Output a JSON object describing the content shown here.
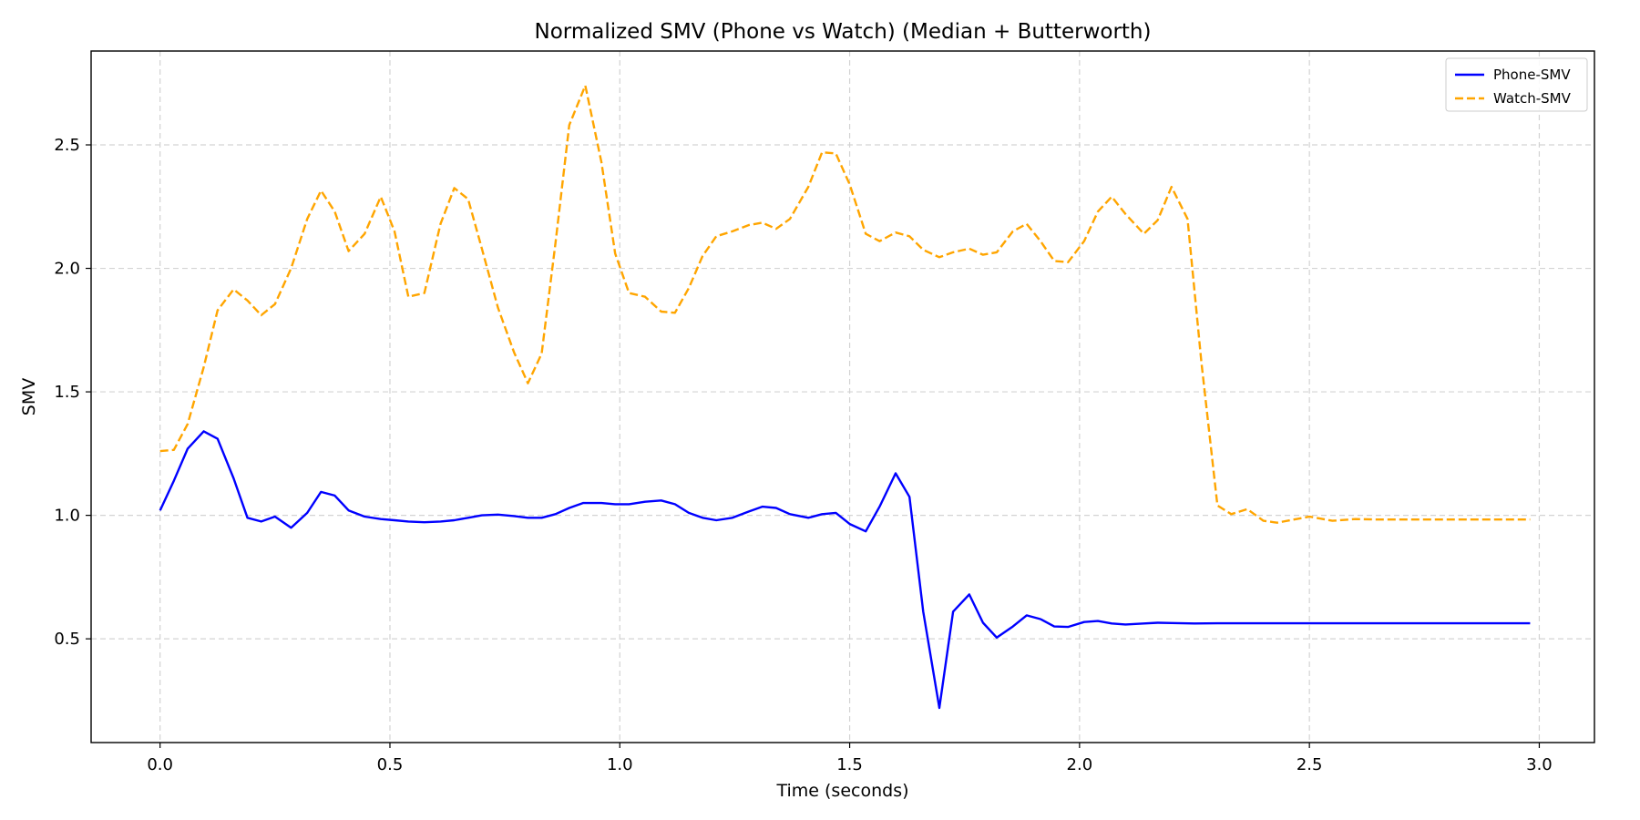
{
  "chart_data": {
    "type": "line",
    "title": "Normalized SMV (Phone vs Watch) (Median + Butterworth)",
    "xlabel": "Time (seconds)",
    "ylabel": "SMV",
    "xlim": [
      -0.15,
      3.12
    ],
    "ylim": [
      0.08,
      2.88
    ],
    "xticks": [
      0.0,
      0.5,
      1.0,
      1.5,
      2.0,
      2.5,
      3.0
    ],
    "xtick_labels": [
      "0.0",
      "0.5",
      "1.0",
      "1.5",
      "2.0",
      "2.5",
      "3.0"
    ],
    "yticks": [
      0.5,
      1.0,
      1.5,
      2.0,
      2.5
    ],
    "ytick_labels": [
      "0.5",
      "1.0",
      "1.5",
      "2.0",
      "2.5"
    ],
    "grid": true,
    "legend": "top-right",
    "series": [
      {
        "name": "Phone-SMV",
        "color": "#0000ff",
        "style": "solid",
        "x": [
          0.0,
          0.03,
          0.06,
          0.095,
          0.125,
          0.16,
          0.19,
          0.22,
          0.25,
          0.285,
          0.32,
          0.35,
          0.38,
          0.41,
          0.445,
          0.48,
          0.51,
          0.54,
          0.575,
          0.61,
          0.64,
          0.67,
          0.7,
          0.735,
          0.77,
          0.8,
          0.83,
          0.86,
          0.89,
          0.92,
          0.96,
          0.99,
          1.02,
          1.055,
          1.09,
          1.12,
          1.15,
          1.18,
          1.21,
          1.245,
          1.28,
          1.31,
          1.34,
          1.37,
          1.41,
          1.44,
          1.47,
          1.5,
          1.535,
          1.565,
          1.6,
          1.63,
          1.66,
          1.695,
          1.725,
          1.76,
          1.79,
          1.82,
          1.855,
          1.885,
          1.915,
          1.945,
          1.975,
          2.01,
          2.04,
          2.07,
          2.1,
          2.14,
          2.17,
          2.2,
          2.25,
          2.3,
          2.4,
          2.5,
          2.6,
          2.7,
          2.8,
          2.9,
          2.98
        ],
        "y": [
          1.02,
          1.14,
          1.27,
          1.34,
          1.31,
          1.15,
          0.99,
          0.975,
          0.995,
          0.95,
          1.01,
          1.095,
          1.08,
          1.02,
          0.995,
          0.985,
          0.98,
          0.975,
          0.972,
          0.975,
          0.98,
          0.99,
          1.0,
          1.003,
          0.997,
          0.99,
          0.99,
          1.005,
          1.03,
          1.05,
          1.05,
          1.045,
          1.045,
          1.055,
          1.06,
          1.045,
          1.01,
          0.99,
          0.98,
          0.99,
          1.015,
          1.035,
          1.03,
          1.005,
          0.99,
          1.005,
          1.01,
          0.965,
          0.935,
          1.035,
          1.17,
          1.075,
          0.61,
          0.22,
          0.61,
          0.68,
          0.565,
          0.505,
          0.55,
          0.595,
          0.58,
          0.55,
          0.548,
          0.568,
          0.572,
          0.562,
          0.558,
          0.562,
          0.565,
          0.564,
          0.562,
          0.563,
          0.563,
          0.563,
          0.563,
          0.563,
          0.563,
          0.563,
          0.563
        ]
      },
      {
        "name": "Watch-SMV",
        "color": "#ffa500",
        "style": "dashed",
        "x": [
          0.0,
          0.03,
          0.06,
          0.095,
          0.125,
          0.16,
          0.19,
          0.22,
          0.25,
          0.285,
          0.32,
          0.35,
          0.38,
          0.41,
          0.445,
          0.48,
          0.51,
          0.54,
          0.575,
          0.61,
          0.64,
          0.67,
          0.7,
          0.735,
          0.77,
          0.8,
          0.83,
          0.86,
          0.89,
          0.925,
          0.96,
          0.99,
          1.02,
          1.055,
          1.09,
          1.12,
          1.15,
          1.18,
          1.21,
          1.245,
          1.28,
          1.31,
          1.34,
          1.37,
          1.41,
          1.44,
          1.47,
          1.5,
          1.535,
          1.565,
          1.6,
          1.63,
          1.66,
          1.695,
          1.725,
          1.76,
          1.79,
          1.82,
          1.855,
          1.885,
          1.915,
          1.945,
          1.975,
          2.01,
          2.04,
          2.07,
          2.1,
          2.14,
          2.17,
          2.2,
          2.235,
          2.265,
          2.3,
          2.33,
          2.365,
          2.4,
          2.43,
          2.5,
          2.55,
          2.6,
          2.65,
          2.7,
          2.8,
          2.9,
          2.98
        ],
        "y": [
          1.26,
          1.265,
          1.37,
          1.6,
          1.83,
          1.915,
          1.87,
          1.81,
          1.855,
          2.0,
          2.2,
          2.315,
          2.23,
          2.07,
          2.14,
          2.29,
          2.15,
          1.885,
          1.9,
          2.18,
          2.325,
          2.28,
          2.08,
          1.84,
          1.66,
          1.535,
          1.655,
          2.1,
          2.58,
          2.74,
          2.43,
          2.06,
          1.9,
          1.885,
          1.825,
          1.82,
          1.92,
          2.05,
          2.13,
          2.15,
          2.175,
          2.185,
          2.16,
          2.2,
          2.33,
          2.47,
          2.465,
          2.34,
          2.14,
          2.11,
          2.145,
          2.13,
          2.075,
          2.045,
          2.065,
          2.08,
          2.055,
          2.065,
          2.15,
          2.18,
          2.11,
          2.03,
          2.025,
          2.11,
          2.23,
          2.29,
          2.22,
          2.14,
          2.195,
          2.33,
          2.2,
          1.62,
          1.04,
          1.005,
          1.025,
          0.978,
          0.97,
          0.995,
          0.978,
          0.985,
          0.983,
          0.983,
          0.983,
          0.983,
          0.983
        ]
      }
    ]
  }
}
